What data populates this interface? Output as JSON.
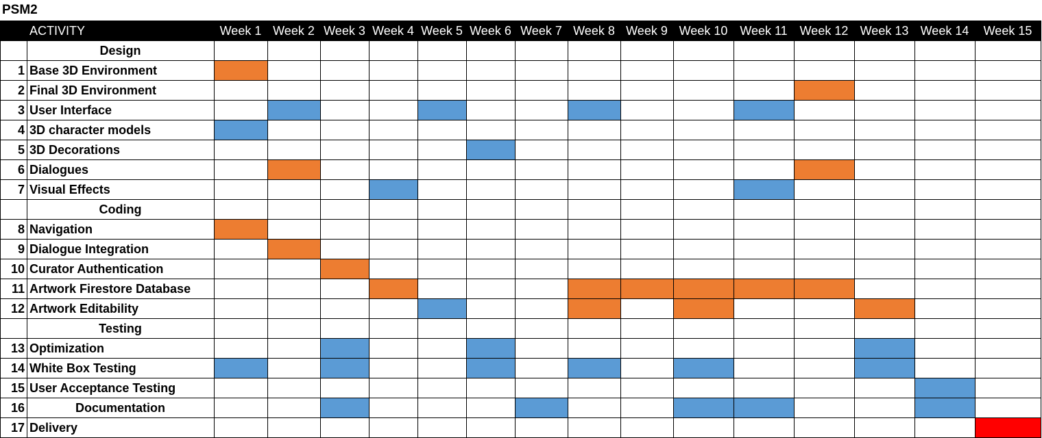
{
  "title": "PSM2",
  "colors": {
    "header_bg": "#000000",
    "orange": "#ED7D31",
    "blue": "#5B9BD5",
    "red": "#FF0000",
    "grid": "#000000"
  },
  "chart_data": {
    "type": "table",
    "activity_header": "ACTIVITY",
    "weeks": [
      "Week 1",
      "Week 2",
      "Week 3",
      "Week 4",
      "Week 5",
      "Week 6",
      "Week 7",
      "Week 8",
      "Week 9",
      "Week 10",
      "Week 11",
      "Week 12",
      "Week 13",
      "Week 14",
      "Week 15"
    ],
    "rows": [
      {
        "num": "",
        "label": "Design",
        "section": true,
        "cells": []
      },
      {
        "num": "1",
        "label": "Base 3D Environment",
        "cells": [
          {
            "week": 1,
            "color": "orange"
          }
        ]
      },
      {
        "num": "2",
        "label": "Final 3D Environment",
        "cells": [
          {
            "week": 12,
            "color": "orange"
          }
        ]
      },
      {
        "num": "3",
        "label": "User Interface",
        "cells": [
          {
            "week": 2,
            "color": "blue"
          },
          {
            "week": 5,
            "color": "blue"
          },
          {
            "week": 8,
            "color": "blue"
          },
          {
            "week": 11,
            "color": "blue"
          }
        ]
      },
      {
        "num": "4",
        "label": "3D character models",
        "cells": [
          {
            "week": 1,
            "color": "blue"
          }
        ]
      },
      {
        "num": "5",
        "label": "3D Decorations",
        "cells": [
          {
            "week": 6,
            "color": "blue"
          }
        ]
      },
      {
        "num": "6",
        "label": "Dialogues",
        "cells": [
          {
            "week": 2,
            "color": "orange"
          },
          {
            "week": 12,
            "color": "orange"
          }
        ]
      },
      {
        "num": "7",
        "label": "Visual Effects",
        "cells": [
          {
            "week": 4,
            "color": "blue"
          },
          {
            "week": 11,
            "color": "blue"
          }
        ]
      },
      {
        "num": "",
        "label": "Coding",
        "section": true,
        "cells": []
      },
      {
        "num": "8",
        "label": "Navigation",
        "cells": [
          {
            "week": 1,
            "color": "orange"
          }
        ]
      },
      {
        "num": "9",
        "label": "Dialogue Integration",
        "cells": [
          {
            "week": 2,
            "color": "orange"
          }
        ]
      },
      {
        "num": "10",
        "label": "Curator Authentication",
        "cells": [
          {
            "week": 3,
            "color": "orange"
          }
        ]
      },
      {
        "num": "11",
        "label": "Artwork Firestore Database",
        "cells": [
          {
            "week": 4,
            "color": "orange"
          },
          {
            "week": 8,
            "color": "orange"
          },
          {
            "week": 9,
            "color": "orange"
          },
          {
            "week": 10,
            "color": "orange"
          },
          {
            "week": 11,
            "color": "orange"
          },
          {
            "week": 12,
            "color": "orange"
          }
        ]
      },
      {
        "num": "12",
        "label": "Artwork Editability",
        "cells": [
          {
            "week": 5,
            "color": "blue"
          },
          {
            "week": 8,
            "color": "orange"
          },
          {
            "week": 10,
            "color": "orange"
          },
          {
            "week": 13,
            "color": "orange"
          }
        ]
      },
      {
        "num": "",
        "label": "Testing",
        "section": true,
        "cells": []
      },
      {
        "num": "13",
        "label": "Optimization",
        "cells": [
          {
            "week": 3,
            "color": "blue"
          },
          {
            "week": 6,
            "color": "blue"
          },
          {
            "week": 13,
            "color": "blue"
          }
        ]
      },
      {
        "num": "14",
        "label": "White Box Testing",
        "cells": [
          {
            "week": 1,
            "color": "blue"
          },
          {
            "week": 3,
            "color": "blue"
          },
          {
            "week": 6,
            "color": "blue"
          },
          {
            "week": 8,
            "color": "blue"
          },
          {
            "week": 10,
            "color": "blue"
          },
          {
            "week": 13,
            "color": "blue"
          }
        ]
      },
      {
        "num": "15",
        "label": "User Acceptance Testing",
        "cells": [
          {
            "week": 14,
            "color": "blue"
          }
        ]
      },
      {
        "num": "16",
        "label": "Documentation",
        "centered": true,
        "cells": [
          {
            "week": 3,
            "color": "blue"
          },
          {
            "week": 7,
            "color": "blue"
          },
          {
            "week": 10,
            "color": "blue"
          },
          {
            "week": 11,
            "color": "blue"
          },
          {
            "week": 14,
            "color": "blue"
          }
        ]
      },
      {
        "num": "17",
        "label": "Delivery",
        "cells": [
          {
            "week": 15,
            "color": "red"
          }
        ]
      }
    ]
  }
}
